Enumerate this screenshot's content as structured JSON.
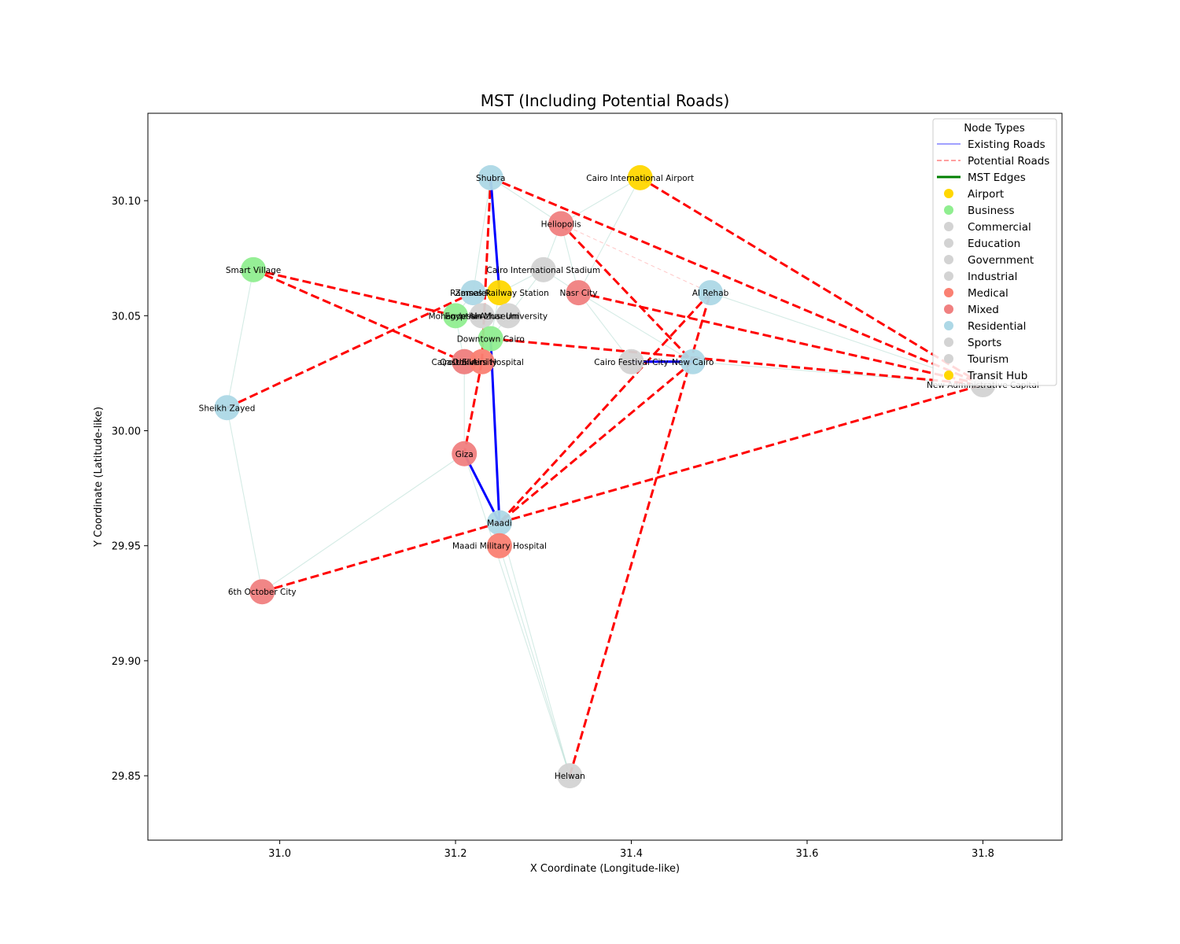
{
  "chart_data": {
    "type": "network",
    "title": "MST (Including Potential Roads)",
    "xlabel": "X Coordinate (Longitude-like)",
    "ylabel": "Y Coordinate (Latitude-like)",
    "xlim": [
      30.85,
      31.89
    ],
    "ylim": [
      29.822,
      30.138
    ],
    "xticks": [
      31.0,
      31.2,
      31.4,
      31.6,
      31.8
    ],
    "xtick_labels": [
      "31.0",
      "31.2",
      "31.4",
      "31.6",
      "31.8"
    ],
    "yticks": [
      29.85,
      29.9,
      29.95,
      30.0,
      30.05,
      30.1
    ],
    "ytick_labels": [
      "29.85",
      "29.90",
      "29.95",
      "30.00",
      "30.05",
      "30.10"
    ],
    "grid": false,
    "legend": {
      "title": "Node Types",
      "placement": "top-right",
      "edge_entries": [
        {
          "label": "Existing Roads",
          "color": "#8080ff",
          "style": "solid"
        },
        {
          "label": "Potential Roads",
          "color": "#ff8080",
          "style": "dashed"
        },
        {
          "label": "MST Edges",
          "color": "#008000",
          "style": "solid-thick"
        }
      ],
      "node_entries": [
        {
          "label": "Airport",
          "color": "#ffd700"
        },
        {
          "label": "Business",
          "color": "#90ee90"
        },
        {
          "label": "Commercial",
          "color": "#d3d3d3"
        },
        {
          "label": "Education",
          "color": "#d3d3d3"
        },
        {
          "label": "Government",
          "color": "#d3d3d3"
        },
        {
          "label": "Industrial",
          "color": "#d3d3d3"
        },
        {
          "label": "Medical",
          "color": "#fa8072"
        },
        {
          "label": "Mixed",
          "color": "#f08080"
        },
        {
          "label": "Residential",
          "color": "#add8e6"
        },
        {
          "label": "Sports",
          "color": "#d3d3d3"
        },
        {
          "label": "Tourism",
          "color": "#d3d3d3"
        },
        {
          "label": "Transit Hub",
          "color": "#ffd700"
        }
      ]
    },
    "nodes": [
      {
        "id": "shubra",
        "label": "Shubra",
        "x": 31.24,
        "y": 30.11,
        "color": "#add8e6"
      },
      {
        "id": "airport",
        "label": "Cairo International Airport",
        "x": 31.41,
        "y": 30.11,
        "color": "#ffd700"
      },
      {
        "id": "heliopolis",
        "label": "Heliopolis",
        "x": 31.32,
        "y": 30.09,
        "color": "#f08080"
      },
      {
        "id": "smart_village",
        "label": "Smart Village",
        "x": 30.97,
        "y": 30.07,
        "color": "#90ee90"
      },
      {
        "id": "stadium",
        "label": "Cairo International Stadium",
        "x": 31.3,
        "y": 30.07,
        "color": "#d3d3d3"
      },
      {
        "id": "zamalek",
        "label": "Zamalek",
        "x": 31.22,
        "y": 30.06,
        "color": "#add8e6"
      },
      {
        "id": "ramses",
        "label": "Ramses Railway Station",
        "x": 31.25,
        "y": 30.06,
        "color": "#ffd700"
      },
      {
        "id": "nasr_city",
        "label": "Nasr City",
        "x": 31.34,
        "y": 30.06,
        "color": "#f08080"
      },
      {
        "id": "al_rehab",
        "label": "Al Rehab",
        "x": 31.49,
        "y": 30.06,
        "color": "#add8e6"
      },
      {
        "id": "mohandessin",
        "label": "Mohandessin",
        "x": 31.2,
        "y": 30.05,
        "color": "#90ee90"
      },
      {
        "id": "egyptian_museum",
        "label": "Egyptian Museum",
        "x": 31.23,
        "y": 30.05,
        "color": "#d3d3d3"
      },
      {
        "id": "al_azhar",
        "label": "Al-Azhar University",
        "x": 31.26,
        "y": 30.05,
        "color": "#d3d3d3"
      },
      {
        "id": "downtown",
        "label": "Downtown Cairo",
        "x": 31.24,
        "y": 30.04,
        "color": "#90ee90"
      },
      {
        "id": "cairo_university",
        "label": "Cairo University",
        "x": 31.21,
        "y": 30.03,
        "color": "#d3d3d3"
      },
      {
        "id": "dokki",
        "label": "Dokki",
        "x": 31.21,
        "y": 30.03,
        "color": "#f08080"
      },
      {
        "id": "qasr",
        "label": "Qasr El Aini Hospital",
        "x": 31.23,
        "y": 30.03,
        "color": "#fa8072"
      },
      {
        "id": "festival_city",
        "label": "Cairo Festival City",
        "x": 31.4,
        "y": 30.03,
        "color": "#d3d3d3"
      },
      {
        "id": "new_cairo",
        "label": "New Cairo",
        "x": 31.47,
        "y": 30.03,
        "color": "#add8e6"
      },
      {
        "id": "new_capital",
        "label": "New Administrative Capital",
        "x": 31.8,
        "y": 30.02,
        "color": "#d3d3d3"
      },
      {
        "id": "sheikh_zayed",
        "label": "Sheikh Zayed",
        "x": 30.94,
        "y": 30.01,
        "color": "#add8e6"
      },
      {
        "id": "giza",
        "label": "Giza",
        "x": 31.21,
        "y": 29.99,
        "color": "#f08080"
      },
      {
        "id": "maadi",
        "label": "Maadi",
        "x": 31.25,
        "y": 29.96,
        "color": "#add8e6"
      },
      {
        "id": "maadi_hospital",
        "label": "Maadi Military Hospital",
        "x": 31.25,
        "y": 29.95,
        "color": "#fa8072"
      },
      {
        "id": "october",
        "label": "6th October City",
        "x": 30.98,
        "y": 29.93,
        "color": "#f08080"
      },
      {
        "id": "helwan",
        "label": "Helwan",
        "x": 31.33,
        "y": 29.85,
        "color": "#d3d3d3"
      }
    ],
    "existing_roads": [
      [
        "smart_village",
        "sheikh_zayed"
      ],
      [
        "sheikh_zayed",
        "october"
      ],
      [
        "october",
        "giza"
      ],
      [
        "shubra",
        "heliopolis"
      ],
      [
        "shubra",
        "zamalek"
      ],
      [
        "heliopolis",
        "airport"
      ],
      [
        "airport",
        "nasr_city"
      ],
      [
        "heliopolis",
        "stadium"
      ],
      [
        "heliopolis",
        "nasr_city"
      ],
      [
        "stadium",
        "nasr_city"
      ],
      [
        "stadium",
        "al_azhar"
      ],
      [
        "stadium",
        "ramses"
      ],
      [
        "nasr_city",
        "new_cairo"
      ],
      [
        "new_cairo",
        "new_capital"
      ],
      [
        "al_rehab",
        "new_capital"
      ],
      [
        "ramses",
        "zamalek"
      ],
      [
        "ramses",
        "downtown"
      ],
      [
        "zamalek",
        "mohandessin"
      ],
      [
        "mohandessin",
        "dokki"
      ],
      [
        "downtown",
        "al_azhar"
      ],
      [
        "festival_city",
        "nasr_city"
      ],
      [
        "giza",
        "maadi"
      ],
      [
        "maadi",
        "helwan"
      ],
      [
        "maadi_hospital",
        "helwan"
      ],
      [
        "giza",
        "helwan"
      ],
      [
        "dokki",
        "giza"
      ],
      [
        "shubra",
        "ramses"
      ]
    ],
    "potential_roads_faint": [
      [
        "heliopolis",
        "al_rehab"
      ]
    ],
    "potential_roads": [
      [
        "shubra",
        "new_capital"
      ],
      [
        "airport",
        "new_capital"
      ],
      [
        "heliopolis",
        "new_cairo"
      ],
      [
        "nasr_city",
        "new_capital"
      ],
      [
        "downtown",
        "new_capital"
      ],
      [
        "al_rehab",
        "maadi"
      ],
      [
        "new_cairo",
        "maadi"
      ],
      [
        "helwan",
        "al_rehab"
      ],
      [
        "maadi",
        "new_capital"
      ],
      [
        "october",
        "maadi"
      ],
      [
        "smart_village",
        "mohandessin"
      ],
      [
        "smart_village",
        "cairo_university"
      ],
      [
        "sheikh_zayed",
        "zamalek"
      ],
      [
        "shubra",
        "qasr"
      ],
      [
        "qasr",
        "giza"
      ],
      [
        "festival_city",
        "new_cairo"
      ]
    ],
    "mst_edges": [
      [
        "shubra",
        "ramses"
      ],
      [
        "downtown",
        "maadi"
      ],
      [
        "giza",
        "maadi"
      ],
      [
        "festival_city",
        "new_cairo"
      ]
    ]
  }
}
